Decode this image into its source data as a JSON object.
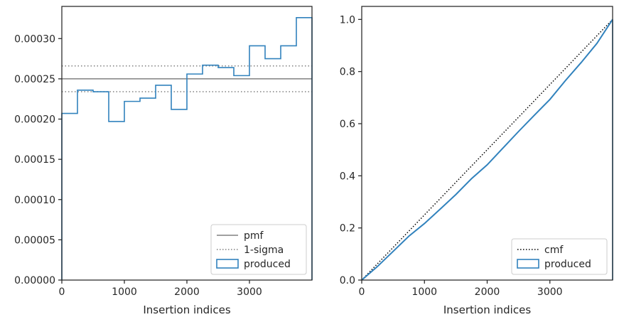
{
  "chart_data": [
    {
      "type": "histogram",
      "xlabel": "Insertion indices",
      "ylabel": "",
      "xlim": [
        0,
        4000
      ],
      "ylim": [
        0,
        0.00034
      ],
      "xticks": [
        0,
        1000,
        2000,
        3000
      ],
      "xtick_labels": [
        "0",
        "1000",
        "2000",
        "3000"
      ],
      "yticks": [
        0,
        5e-05,
        0.0001,
        0.00015,
        0.0002,
        0.00025,
        0.0003
      ],
      "ytick_labels": [
        "0.00000",
        "0.00005",
        "0.00010",
        "0.00015",
        "0.00020",
        "0.00025",
        "0.00030"
      ],
      "grid": false,
      "legend_position": "lower-right",
      "bin_edges": [
        0,
        250,
        500,
        750,
        1000,
        1250,
        1500,
        1750,
        2000,
        2250,
        2500,
        2750,
        3000,
        3250,
        3500,
        3750,
        4000
      ],
      "series": [
        {
          "name": "produced",
          "style": "step",
          "color": "#3182bd",
          "values": [
            0.000207,
            0.000236,
            0.000234,
            0.000197,
            0.000222,
            0.000226,
            0.000242,
            0.000212,
            0.000256,
            0.000267,
            0.000264,
            0.000254,
            0.000291,
            0.000275,
            0.000291,
            0.000326
          ]
        }
      ],
      "reference_lines": [
        {
          "name": "pmf",
          "value": 0.00025,
          "style": "solid",
          "color": "#808080"
        },
        {
          "name": "1-sigma",
          "values": [
            0.000266,
            0.000234
          ],
          "style": "dotted",
          "color": "#808080"
        }
      ],
      "legend": [
        {
          "label": "pmf",
          "kind": "solid-line",
          "color": "#808080"
        },
        {
          "label": "1-sigma",
          "kind": "dotted-line",
          "color": "#808080"
        },
        {
          "label": "produced",
          "kind": "patch",
          "color": "#3182bd"
        }
      ]
    },
    {
      "type": "line",
      "xlabel": "Insertion indices",
      "ylabel": "",
      "xlim": [
        0,
        4000
      ],
      "ylim": [
        0,
        1.05
      ],
      "xticks": [
        0,
        1000,
        2000,
        3000
      ],
      "xtick_labels": [
        "0",
        "1000",
        "2000",
        "3000"
      ],
      "yticks": [
        0,
        0.2,
        0.4,
        0.6,
        0.8,
        1.0
      ],
      "ytick_labels": [
        "0.0",
        "0.2",
        "0.4",
        "0.6",
        "0.8",
        "1.0"
      ],
      "grid": false,
      "legend_position": "lower-right",
      "series": [
        {
          "name": "cmf",
          "style": "dotted",
          "color": "#000000",
          "x": [
            0,
            4000
          ],
          "y": [
            0,
            1.0
          ]
        },
        {
          "name": "produced",
          "style": "step",
          "color": "#3182bd",
          "x": [
            0,
            250,
            500,
            750,
            1000,
            1250,
            1500,
            1750,
            2000,
            2250,
            2500,
            2750,
            3000,
            3250,
            3500,
            3750,
            4000
          ],
          "y": [
            0,
            0.052,
            0.11,
            0.168,
            0.217,
            0.272,
            0.328,
            0.389,
            0.442,
            0.506,
            0.57,
            0.632,
            0.693,
            0.766,
            0.835,
            0.908,
            1.0
          ]
        }
      ],
      "legend": [
        {
          "label": "cmf",
          "kind": "dotted-line",
          "color": "#000000"
        },
        {
          "label": "produced",
          "kind": "patch",
          "color": "#3182bd"
        }
      ]
    }
  ]
}
